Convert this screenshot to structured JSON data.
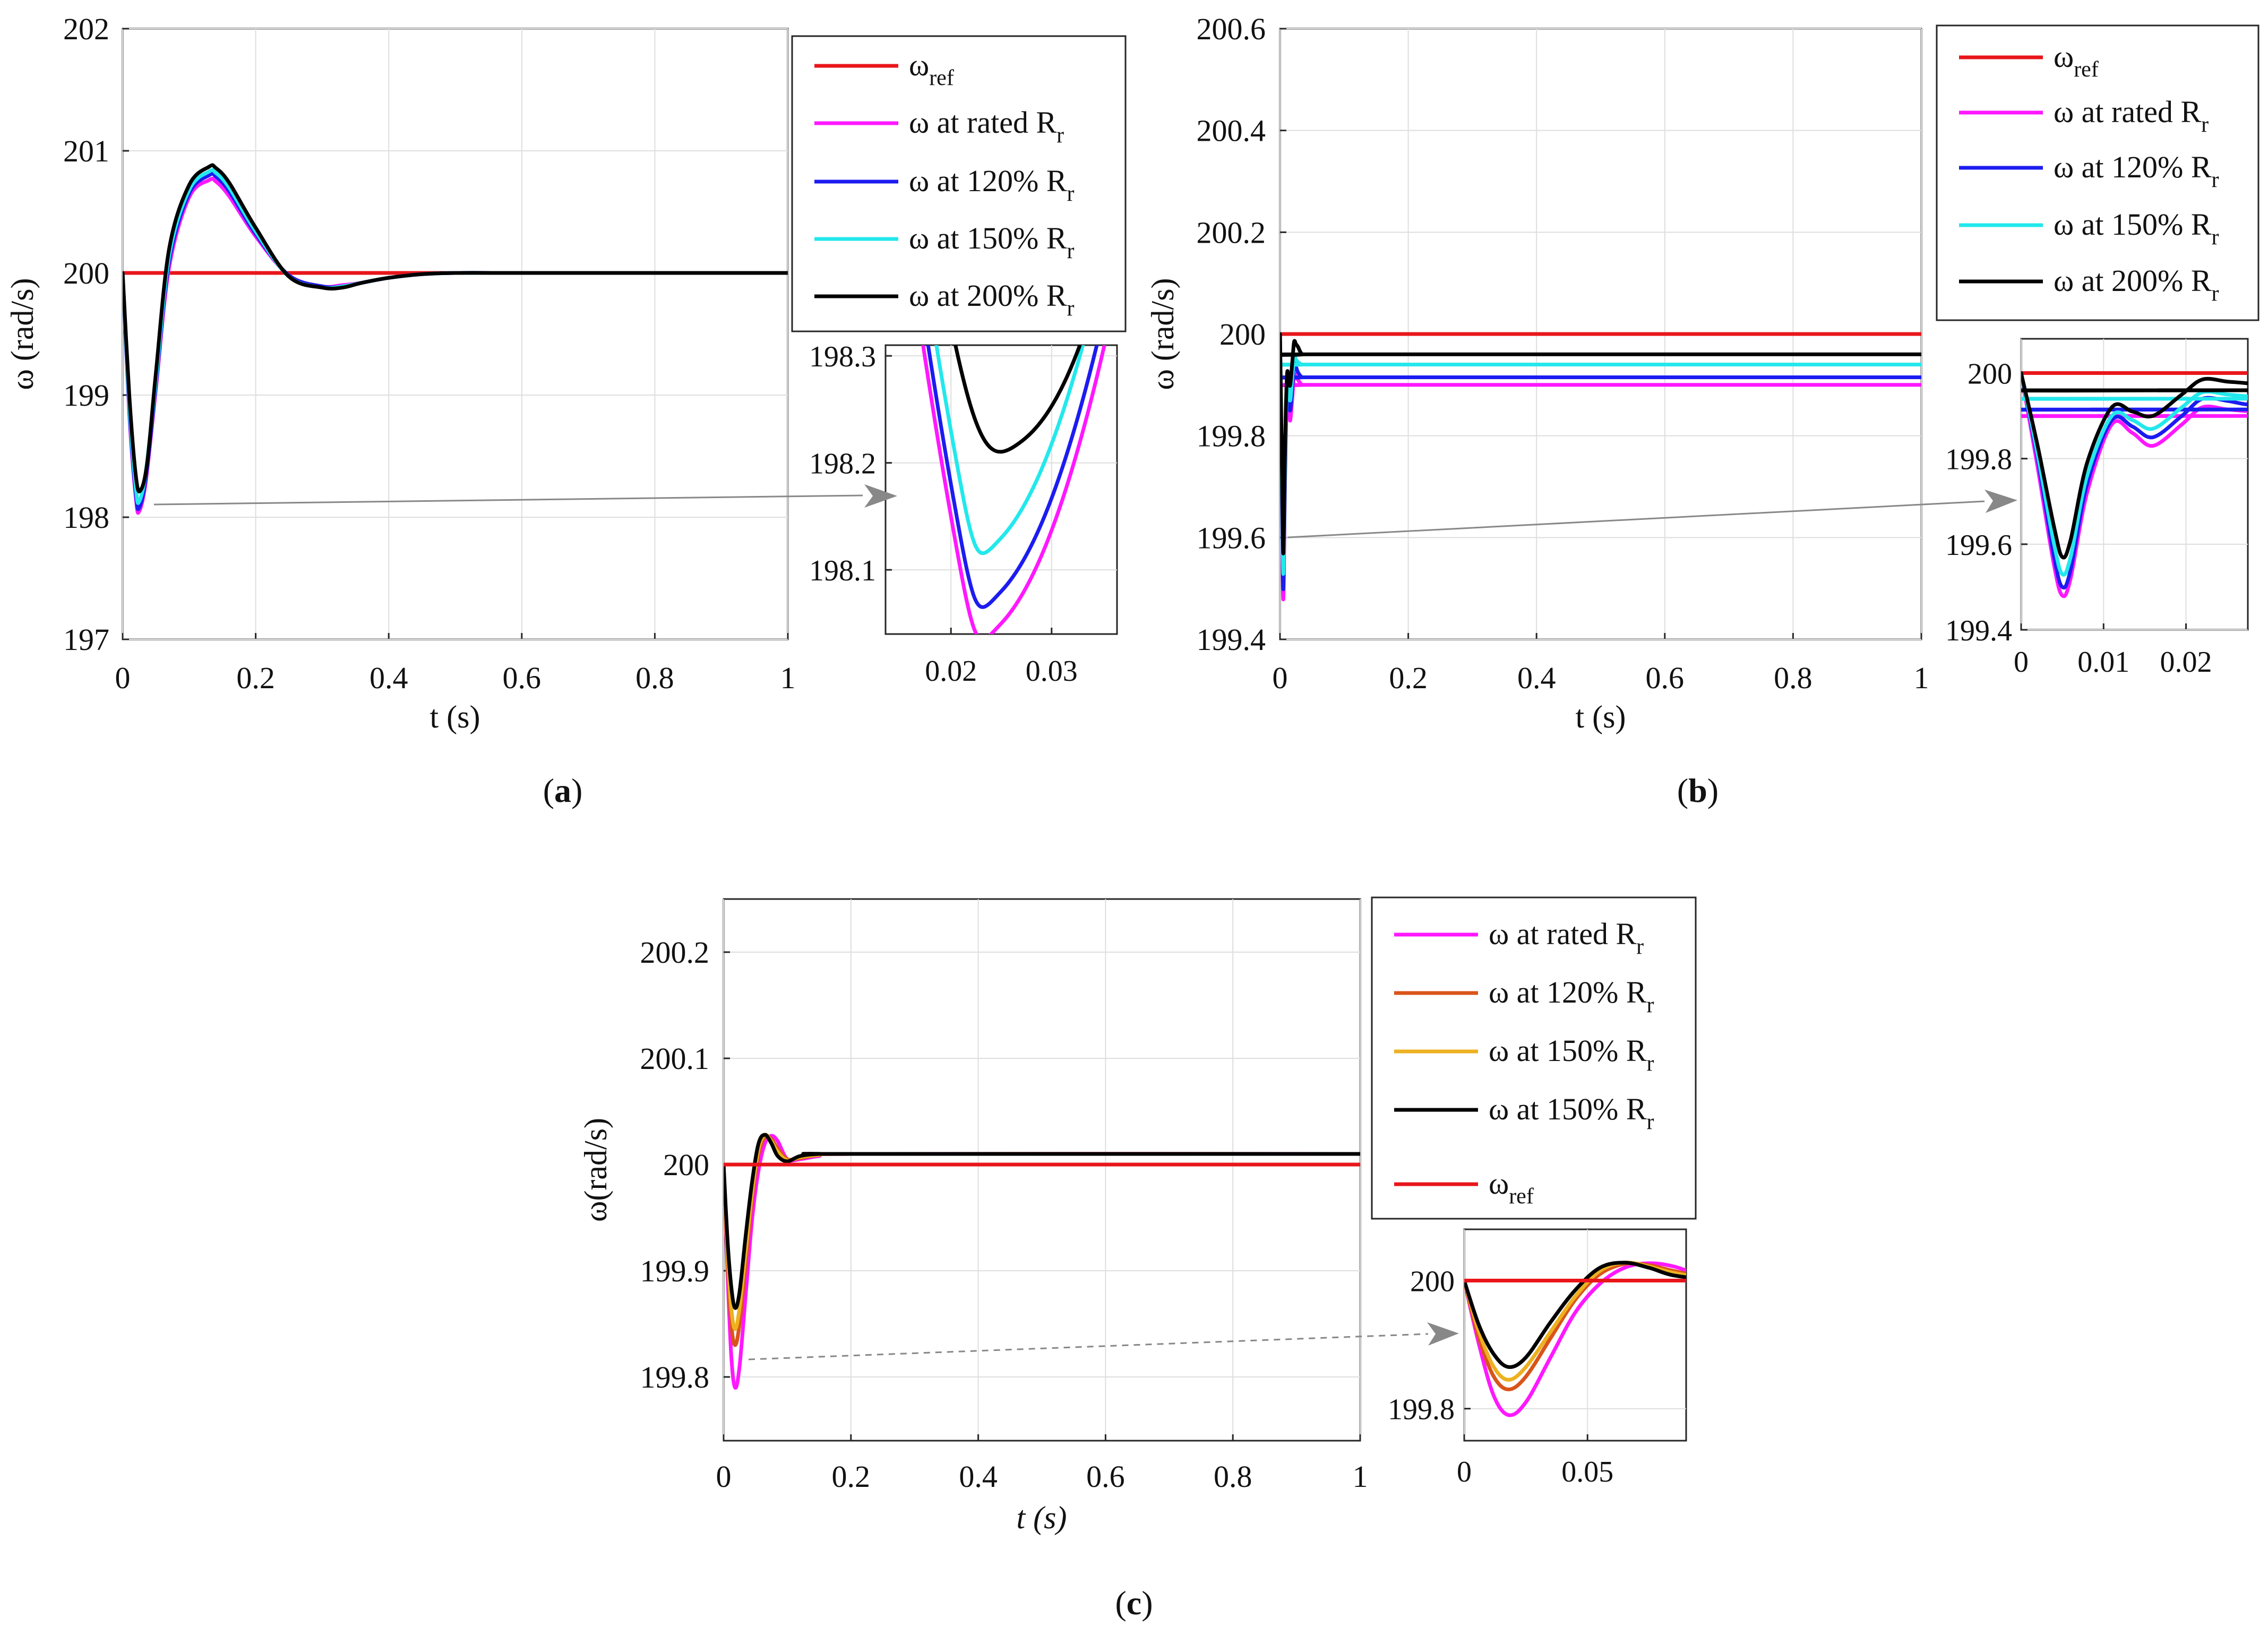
{
  "colors": {
    "ref": "#e8161b",
    "rated": "#ff18ff",
    "p120_ab": "#1c1cf0",
    "p150_ab": "#23e8ec",
    "p200": "#000000",
    "p120_c": "#d9541a",
    "p150_c": "#edb120",
    "grid": "#dedede",
    "arrow": "#888888"
  },
  "chart_data": [
    {
      "id": "a",
      "type": "line",
      "caption_letter": "a",
      "xlabel": "t (s)",
      "ylabel": "ω (rad/s)",
      "xlim": [
        0,
        1
      ],
      "ylim": [
        197,
        202
      ],
      "xticks": [
        0,
        0.2,
        0.4,
        0.6,
        0.8,
        1
      ],
      "xtick_labels": [
        "0",
        "0.2",
        "0.4",
        "0.6",
        "0.8",
        "1"
      ],
      "yticks": [
        197,
        198,
        199,
        200,
        201,
        202
      ],
      "ytick_labels": [
        "197",
        "198",
        "199",
        "200",
        "201",
        "202"
      ],
      "legend": [
        {
          "main": "ω",
          "sub": "ref",
          "suffix": "",
          "series": "ref"
        },
        {
          "main": "ω at rated R",
          "sub": "r",
          "suffix": "",
          "series": "rated"
        },
        {
          "main": "ω at 120% R",
          "sub": "r",
          "suffix": "",
          "series": "p120"
        },
        {
          "main": "ω at 150% R",
          "sub": "r",
          "suffix": "",
          "series": "p150"
        },
        {
          "main": "ω at 200% R",
          "sub": "r",
          "suffix": "",
          "series": "p200"
        }
      ],
      "series": [
        {
          "name": "ω ref",
          "key": "ref",
          "color_key": "ref",
          "x": [
            0,
            1
          ],
          "y": [
            200,
            200
          ]
        },
        {
          "name": "ω at rated Rr",
          "key": "rated",
          "color_key": "rated",
          "x": [
            0,
            0.01,
            0.02,
            0.025,
            0.035,
            0.05,
            0.07,
            0.1,
            0.13,
            0.14,
            0.16,
            0.2,
            0.25,
            0.3,
            0.33,
            0.36,
            0.4,
            0.45,
            0.5,
            0.6,
            1
          ],
          "y": [
            200,
            198.85,
            198.15,
            198.05,
            198.3,
            199.05,
            200.05,
            200.62,
            200.76,
            200.75,
            200.63,
            200.3,
            199.98,
            199.89,
            199.9,
            199.92,
            199.96,
            199.99,
            200.0,
            200,
            200
          ]
        },
        {
          "name": "ω at 120% Rr",
          "key": "p120",
          "color_key": "p120_ab",
          "x": [
            0,
            0.01,
            0.02,
            0.025,
            0.035,
            0.05,
            0.07,
            0.1,
            0.13,
            0.14,
            0.16,
            0.2,
            0.25,
            0.3,
            0.33,
            0.36,
            0.4,
            0.45,
            0.5,
            0.6,
            1
          ],
          "y": [
            200,
            198.88,
            198.18,
            198.08,
            198.33,
            199.08,
            200.1,
            200.65,
            200.8,
            200.79,
            200.67,
            200.32,
            199.98,
            199.89,
            199.89,
            199.92,
            199.96,
            199.99,
            200.0,
            200,
            200
          ]
        },
        {
          "name": "ω at 150% Rr",
          "key": "p150",
          "color_key": "p150_ab",
          "x": [
            0,
            0.01,
            0.02,
            0.025,
            0.035,
            0.05,
            0.07,
            0.1,
            0.13,
            0.14,
            0.16,
            0.2,
            0.25,
            0.3,
            0.33,
            0.36,
            0.4,
            0.45,
            0.5,
            0.6,
            1
          ],
          "y": [
            200,
            198.92,
            198.23,
            198.13,
            198.38,
            199.12,
            200.14,
            200.68,
            200.83,
            200.82,
            200.7,
            200.34,
            199.97,
            199.88,
            199.89,
            199.92,
            199.96,
            199.99,
            200.0,
            200,
            200
          ]
        },
        {
          "name": "ω at 200% Rr",
          "key": "p200",
          "color_key": "p200",
          "x": [
            0,
            0.01,
            0.02,
            0.027,
            0.037,
            0.05,
            0.07,
            0.1,
            0.13,
            0.14,
            0.16,
            0.2,
            0.25,
            0.3,
            0.33,
            0.36,
            0.4,
            0.45,
            0.5,
            0.6,
            1
          ],
          "y": [
            200,
            199.0,
            198.33,
            198.22,
            198.45,
            199.18,
            200.2,
            200.72,
            200.87,
            200.86,
            200.74,
            200.37,
            199.97,
            199.88,
            199.88,
            199.92,
            199.96,
            199.99,
            200.0,
            200,
            200
          ]
        }
      ],
      "inset": {
        "xlim": [
          0.0135,
          0.0365
        ],
        "ylim": [
          198.04,
          198.31
        ],
        "xticks": [
          0.02,
          0.03
        ],
        "xtick_labels": [
          "0.02",
          "0.03"
        ],
        "yticks": [
          198.1,
          198.2,
          198.3
        ],
        "ytick_labels": [
          "198.1",
          "198.2",
          "198.3"
        ]
      }
    },
    {
      "id": "b",
      "type": "line",
      "caption_letter": "b",
      "xlabel": "t (s)",
      "ylabel": "ω (rad/s)",
      "xlim": [
        0,
        1
      ],
      "ylim": [
        199.4,
        200.6
      ],
      "xticks": [
        0,
        0.2,
        0.4,
        0.6,
        0.8,
        1
      ],
      "xtick_labels": [
        "0",
        "0.2",
        "0.4",
        "0.6",
        "0.8",
        "1"
      ],
      "yticks": [
        199.4,
        199.6,
        199.8,
        200,
        200.2,
        200.4,
        200.6
      ],
      "ytick_labels": [
        "199.4",
        "199.6",
        "199.8",
        "200",
        "200.2",
        "200.4",
        "200.6"
      ],
      "legend": [
        {
          "main": "ω",
          "sub": "ref",
          "suffix": "",
          "series": "ref"
        },
        {
          "main": "ω at rated R",
          "sub": "r",
          "suffix": "",
          "series": "rated"
        },
        {
          "main": "ω at 120% R",
          "sub": "r",
          "suffix": "",
          "series": "p120"
        },
        {
          "main": "ω at 150% R",
          "sub": "r",
          "suffix": "",
          "series": "p150"
        },
        {
          "main": "ω at 200% R",
          "sub": "r",
          "suffix": "",
          "series": "p200"
        }
      ],
      "series": [
        {
          "name": "ω ref",
          "key": "ref",
          "color_key": "ref",
          "x": [
            0,
            1
          ],
          "y": [
            200,
            200
          ]
        },
        {
          "name": "ω at rated Rr",
          "key": "rated",
          "color_key": "rated",
          "x": [
            0,
            0.002,
            0.004,
            0.005,
            0.006,
            0.008,
            0.011,
            0.0135,
            0.016,
            0.0195,
            0.022,
            0.025,
            0.028,
            0.035,
            0.05,
            1
          ],
          "y": [
            200,
            199.78,
            199.55,
            199.48,
            199.52,
            199.72,
            199.88,
            199.86,
            199.83,
            199.88,
            199.92,
            199.915,
            199.91,
            199.9,
            199.9,
            199.9
          ]
        },
        {
          "name": "ω at 120% Rr",
          "key": "p120",
          "color_key": "p120_ab",
          "x": [
            0,
            0.002,
            0.004,
            0.005,
            0.006,
            0.008,
            0.011,
            0.0135,
            0.016,
            0.0195,
            0.022,
            0.025,
            0.028,
            0.035,
            0.05,
            1
          ],
          "y": [
            200,
            199.8,
            199.57,
            199.5,
            199.54,
            199.74,
            199.89,
            199.875,
            199.85,
            199.9,
            199.94,
            199.935,
            199.925,
            199.915,
            199.915,
            199.915
          ]
        },
        {
          "name": "ω at 150% Rr",
          "key": "p150",
          "color_key": "p150_ab",
          "x": [
            0,
            0.002,
            0.004,
            0.005,
            0.006,
            0.008,
            0.011,
            0.0135,
            0.016,
            0.0195,
            0.022,
            0.025,
            0.028,
            0.035,
            0.05,
            1
          ],
          "y": [
            200,
            199.81,
            199.6,
            199.53,
            199.57,
            199.76,
            199.9,
            199.89,
            199.87,
            199.92,
            199.955,
            199.95,
            199.945,
            199.94,
            199.94,
            199.94
          ]
        },
        {
          "name": "ω at 200% Rr",
          "key": "p200",
          "color_key": "p200",
          "x": [
            0,
            0.002,
            0.004,
            0.005,
            0.006,
            0.008,
            0.011,
            0.0135,
            0.016,
            0.0195,
            0.022,
            0.025,
            0.028,
            0.035,
            0.05,
            1
          ],
          "y": [
            200,
            199.83,
            199.64,
            199.57,
            199.61,
            199.79,
            199.92,
            199.91,
            199.9,
            199.95,
            199.985,
            199.98,
            199.975,
            199.96,
            199.96,
            199.96
          ]
        }
      ],
      "inset": {
        "xlim": [
          0,
          0.0275
        ],
        "ylim": [
          199.4,
          200.08
        ],
        "xticks": [
          0,
          0.01,
          0.02
        ],
        "xtick_labels": [
          "0",
          "0.01",
          "0.02"
        ],
        "yticks": [
          199.4,
          199.6,
          199.8,
          200
        ],
        "ytick_labels": [
          "199.4",
          "199.6",
          "199.8",
          "200"
        ]
      }
    },
    {
      "id": "c",
      "type": "line",
      "caption_letter": "c",
      "xlabel": "t (s)",
      "xlabel_italic_t": true,
      "ylabel": "ω(rad/s)",
      "xlim": [
        0,
        1
      ],
      "ylim": [
        199.74,
        200.25
      ],
      "xticks": [
        0,
        0.2,
        0.4,
        0.6,
        0.8,
        1
      ],
      "xtick_labels": [
        "0",
        "0.2",
        "0.4",
        "0.6",
        "0.8",
        "1"
      ],
      "yticks": [
        199.8,
        199.9,
        200,
        200.1,
        200.2
      ],
      "ytick_labels": [
        "199.8",
        "199.9",
        "200",
        "200.1",
        "200.2"
      ],
      "legend": [
        {
          "main": "ω at rated R",
          "sub": "r",
          "suffix": "",
          "series": "rated"
        },
        {
          "main": "ω at 120% R",
          "sub": "r",
          "suffix": "",
          "series": "p120"
        },
        {
          "main": "ω at 150% R",
          "sub": "r",
          "suffix": "",
          "series": "p150"
        },
        {
          "main": "ω at 150% R",
          "sub": "r",
          "suffix": "",
          "series": "p200"
        },
        {
          "main": "ω",
          "sub": "ref",
          "suffix": "",
          "series": "ref"
        }
      ],
      "series": [
        {
          "name": "ω at rated Rr",
          "key": "rated",
          "color_key": "rated",
          "x": [
            0,
            0.006,
            0.012,
            0.018,
            0.025,
            0.035,
            0.045,
            0.055,
            0.065,
            0.075,
            0.085,
            0.1,
            0.12,
            0.15,
            0.2,
            1
          ],
          "y": [
            200,
            199.9,
            199.82,
            199.79,
            199.81,
            199.88,
            199.95,
            199.995,
            200.02,
            200.027,
            200.022,
            200.005,
            200.005,
            200.008,
            200.01,
            200.01
          ]
        },
        {
          "name": "ω at 120% Rr",
          "key": "p120",
          "color_key": "p120_c",
          "x": [
            0,
            0.006,
            0.012,
            0.018,
            0.025,
            0.035,
            0.045,
            0.055,
            0.065,
            0.075,
            0.085,
            0.1,
            0.12,
            0.15,
            0.2,
            1
          ],
          "y": [
            200,
            199.91,
            199.85,
            199.83,
            199.85,
            199.91,
            199.97,
            200.01,
            200.026,
            200.024,
            200.015,
            200.005,
            200.006,
            200.009,
            200.01,
            200.01
          ]
        },
        {
          "name": "ω at 150% Rr",
          "key": "p150",
          "color_key": "p150_c",
          "x": [
            0,
            0.006,
            0.012,
            0.018,
            0.025,
            0.035,
            0.045,
            0.055,
            0.065,
            0.075,
            0.085,
            0.1,
            0.12,
            0.15,
            0.2,
            1
          ],
          "y": [
            200,
            199.92,
            199.865,
            199.845,
            199.865,
            199.92,
            199.975,
            200.015,
            200.028,
            200.022,
            200.012,
            200.004,
            200.007,
            200.009,
            200.01,
            200.01
          ]
        },
        {
          "name": "ω at 150% Rr",
          "key": "p200",
          "color_key": "p200",
          "x": [
            0,
            0.006,
            0.012,
            0.018,
            0.025,
            0.035,
            0.045,
            0.055,
            0.065,
            0.075,
            0.085,
            0.1,
            0.12,
            0.15,
            0.2,
            1
          ],
          "y": [
            200,
            199.93,
            199.885,
            199.865,
            199.88,
            199.935,
            199.985,
            200.02,
            200.028,
            200.02,
            200.008,
            200.003,
            200.008,
            200.01,
            200.01,
            200.01
          ]
        },
        {
          "name": "ω ref",
          "key": "ref",
          "color_key": "ref",
          "x": [
            0,
            1
          ],
          "y": [
            200,
            200
          ]
        }
      ],
      "inset": {
        "xlim": [
          0,
          0.09
        ],
        "ylim": [
          199.75,
          200.08
        ],
        "xticks": [
          0,
          0.05
        ],
        "xtick_labels": [
          "0",
          "0.05"
        ],
        "yticks": [
          199.8,
          200
        ],
        "ytick_labels": [
          "199.8",
          "200"
        ]
      }
    }
  ]
}
